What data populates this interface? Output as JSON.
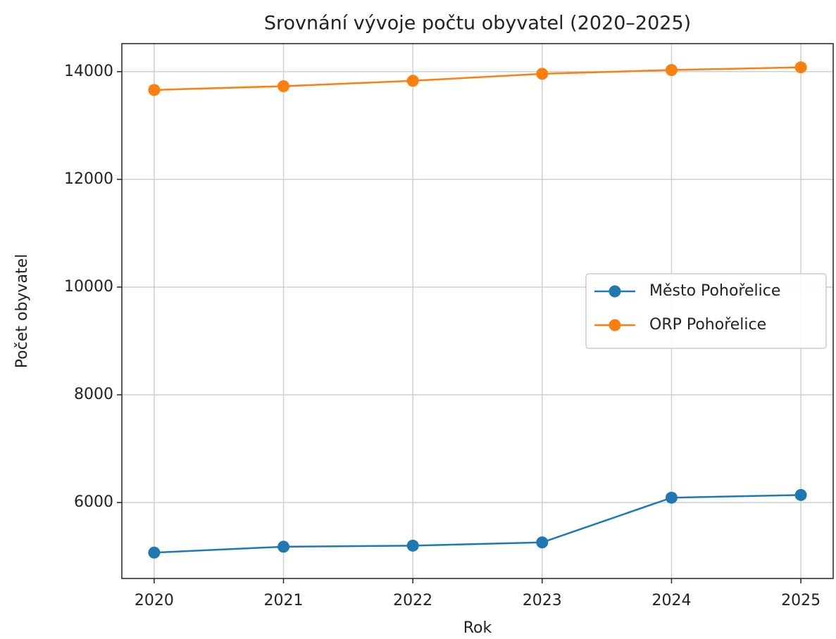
{
  "chart_data": {
    "type": "line",
    "title": "Srovnání vývoje počtu obyvatel (2020–2025)",
    "x_label": "Rok",
    "y_label": "Počet obyvatel",
    "x": [
      2020,
      2021,
      2022,
      2023,
      2024,
      2025
    ],
    "series": [
      {
        "name": "Město Pohořelice",
        "color": "#1f77b4",
        "values": [
          5070,
          5180,
          5200,
          5260,
          6090,
          6140
        ]
      },
      {
        "name": "ORP Pohořelice",
        "color": "#ff7f0e",
        "values": [
          13660,
          13730,
          13830,
          13960,
          14030,
          14080
        ]
      }
    ],
    "xlim": [
      2019.75,
      2025.25
    ],
    "xticks": [
      2020,
      2021,
      2022,
      2023,
      2024,
      2025
    ],
    "ylim": [
      4590,
      14520
    ],
    "yticks": [
      6000,
      8000,
      10000,
      12000,
      14000
    ],
    "grid": true,
    "legend": "center right"
  }
}
